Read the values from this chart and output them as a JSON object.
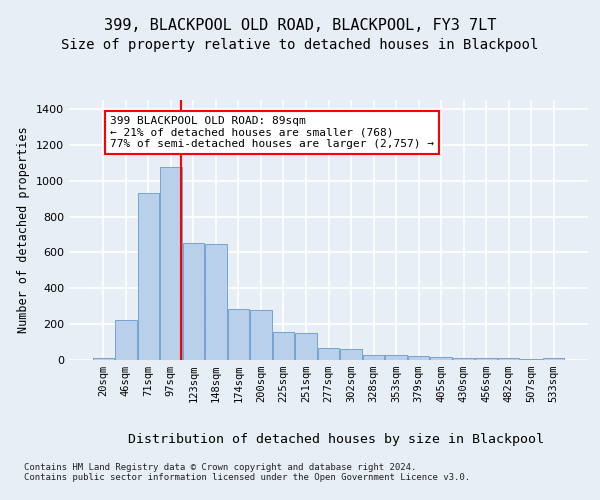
{
  "title1": "399, BLACKPOOL OLD ROAD, BLACKPOOL, FY3 7LT",
  "title2": "Size of property relative to detached houses in Blackpool",
  "xlabel": "Distribution of detached houses by size in Blackpool",
  "ylabel": "Number of detached properties",
  "categories": [
    "20sqm",
    "46sqm",
    "71sqm",
    "97sqm",
    "123sqm",
    "148sqm",
    "174sqm",
    "200sqm",
    "225sqm",
    "251sqm",
    "277sqm",
    "302sqm",
    "328sqm",
    "353sqm",
    "379sqm",
    "405sqm",
    "430sqm",
    "456sqm",
    "482sqm",
    "507sqm",
    "533sqm"
  ],
  "values": [
    10,
    225,
    930,
    1075,
    650,
    645,
    285,
    280,
    155,
    150,
    65,
    62,
    30,
    28,
    20,
    18,
    12,
    10,
    10,
    3,
    10
  ],
  "bar_color": "#b8d0ea",
  "bar_edge_color": "#6699cc",
  "vline_x": 3.45,
  "vline_color": "red",
  "annotation_text": "399 BLACKPOOL OLD ROAD: 89sqm\n← 21% of detached houses are smaller (768)\n77% of semi-detached houses are larger (2,757) →",
  "ylim": [
    0,
    1450
  ],
  "yticks": [
    0,
    200,
    400,
    600,
    800,
    1000,
    1200,
    1400
  ],
  "footer": "Contains HM Land Registry data © Crown copyright and database right 2024.\nContains public sector information licensed under the Open Government Licence v3.0.",
  "bg_color": "#e8eef5",
  "grid_color": "white",
  "title1_fontsize": 11,
  "title2_fontsize": 10,
  "xlabel_fontsize": 9.5,
  "ylabel_fontsize": 8.5,
  "footer_fontsize": 6.5,
  "ann_fontsize": 8,
  "tick_fontsize": 7.5
}
